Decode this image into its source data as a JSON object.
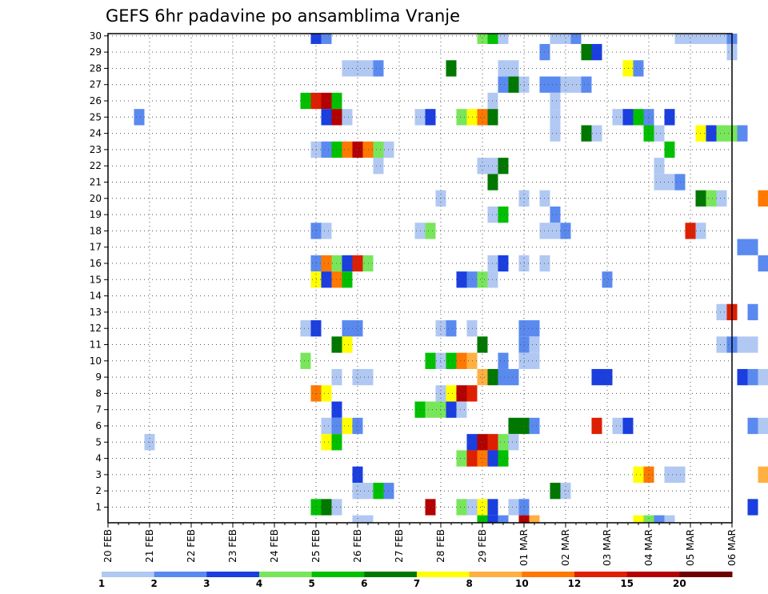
{
  "chart_data": {
    "type": "heatmap",
    "title": "GEFS 6hr padavine po ansamblima Vranje",
    "y_tick_labels": [
      "1",
      "2",
      "3",
      "4",
      "5",
      "6",
      "7",
      "8",
      "9",
      "10",
      "11",
      "12",
      "13",
      "14",
      "15",
      "16",
      "17",
      "18",
      "19",
      "20",
      "21",
      "22",
      "23",
      "24",
      "25",
      "26",
      "27",
      "28",
      "29",
      "30"
    ],
    "x_tick_labels": [
      "20 FEB",
      "21 FEB",
      "22 FEB",
      "23 FEB",
      "24 FEB",
      "25 FEB",
      "26 FEB",
      "27 FEB",
      "28 FEB",
      "29 FEB",
      "01 MAR",
      "02 MAR",
      "03 MAR",
      "04 MAR",
      "05 MAR",
      "06 MAR"
    ],
    "grid": true,
    "colorbar": {
      "colors": [
        "#b0c8f2",
        "#5a8af0",
        "#1a3ee0",
        "#78e65a",
        "#00c000",
        "#007800",
        "#ffff00",
        "#ffb040",
        "#ff7800",
        "#e01e00",
        "#b40000",
        "#6e0000"
      ],
      "tick_labels": [
        "1",
        "2",
        "3",
        "4",
        "5",
        "6",
        "7",
        "8",
        "10",
        "12",
        "15",
        "20"
      ]
    },
    "cells": [
      [
        30,
        25.0,
        3
      ],
      [
        30,
        25.25,
        2
      ],
      [
        30,
        29.0,
        4
      ],
      [
        30,
        29.25,
        5
      ],
      [
        30,
        29.5,
        1
      ],
      [
        30,
        30.75,
        1
      ],
      [
        30,
        31.0,
        1
      ],
      [
        30,
        31.25,
        2
      ],
      [
        30,
        33.75,
        1
      ],
      [
        30,
        34.0,
        1
      ],
      [
        30,
        34.25,
        1
      ],
      [
        30,
        34.5,
        1
      ],
      [
        30,
        34.75,
        1
      ],
      [
        30,
        35.0,
        2
      ],
      [
        29,
        30.5,
        2
      ],
      [
        29,
        31.5,
        6
      ],
      [
        29,
        31.75,
        3
      ],
      [
        29,
        35.0,
        1
      ],
      [
        28,
        25.75,
        1
      ],
      [
        28,
        26.0,
        1
      ],
      [
        28,
        26.25,
        1
      ],
      [
        28,
        26.5,
        2
      ],
      [
        28,
        28.25,
        6
      ],
      [
        28,
        29.5,
        1
      ],
      [
        28,
        29.75,
        1
      ],
      [
        28,
        32.5,
        7
      ],
      [
        28,
        32.75,
        2
      ],
      [
        27,
        29.5,
        2
      ],
      [
        27,
        29.75,
        6
      ],
      [
        27,
        30.0,
        1
      ],
      [
        27,
        30.5,
        2
      ],
      [
        27,
        30.75,
        2
      ],
      [
        27,
        31.0,
        1
      ],
      [
        27,
        31.25,
        1
      ],
      [
        27,
        31.5,
        2
      ],
      [
        26,
        24.75,
        5
      ],
      [
        26,
        25.0,
        10
      ],
      [
        26,
        25.25,
        11
      ],
      [
        26,
        25.5,
        5
      ],
      [
        26,
        29.25,
        1
      ],
      [
        26,
        30.75,
        1
      ],
      [
        25,
        20.75,
        2
      ],
      [
        25,
        25.25,
        3
      ],
      [
        25,
        25.5,
        11
      ],
      [
        25,
        25.75,
        1
      ],
      [
        25,
        27.5,
        1
      ],
      [
        25,
        27.75,
        3
      ],
      [
        25,
        28.5,
        4
      ],
      [
        25,
        28.75,
        7
      ],
      [
        25,
        29.0,
        9
      ],
      [
        25,
        29.25,
        6
      ],
      [
        25,
        30.75,
        1
      ],
      [
        25,
        32.25,
        1
      ],
      [
        25,
        32.5,
        3
      ],
      [
        25,
        32.75,
        5
      ],
      [
        25,
        33.0,
        2
      ],
      [
        25,
        33.5,
        3
      ],
      [
        24,
        30.75,
        1
      ],
      [
        24,
        31.5,
        6
      ],
      [
        24,
        31.75,
        1
      ],
      [
        24,
        33.0,
        5
      ],
      [
        24,
        33.25,
        1
      ],
      [
        24,
        34.25,
        7
      ],
      [
        24,
        34.5,
        3
      ],
      [
        24,
        34.75,
        4
      ],
      [
        24,
        35.0,
        4
      ],
      [
        24,
        35.25,
        2
      ],
      [
        23,
        25.0,
        1
      ],
      [
        23,
        25.25,
        2
      ],
      [
        23,
        25.5,
        5
      ],
      [
        23,
        25.75,
        9
      ],
      [
        23,
        26.0,
        11
      ],
      [
        23,
        26.25,
        9
      ],
      [
        23,
        26.5,
        4
      ],
      [
        23,
        26.75,
        1
      ],
      [
        23,
        33.5,
        5
      ],
      [
        22,
        26.5,
        1
      ],
      [
        22,
        29.0,
        1
      ],
      [
        22,
        29.25,
        1
      ],
      [
        22,
        29.5,
        6
      ],
      [
        22,
        33.25,
        1
      ],
      [
        21,
        29.25,
        6
      ],
      [
        21,
        33.25,
        1
      ],
      [
        21,
        33.5,
        1
      ],
      [
        21,
        33.75,
        2
      ],
      [
        20,
        28.0,
        1
      ],
      [
        20,
        30.0,
        1
      ],
      [
        20,
        30.5,
        1
      ],
      [
        20,
        34.25,
        6
      ],
      [
        20,
        34.5,
        4
      ],
      [
        20,
        34.75,
        1
      ],
      [
        20,
        35.75,
        9
      ],
      [
        19,
        29.25,
        1
      ],
      [
        19,
        29.5,
        5
      ],
      [
        19,
        30.75,
        2
      ],
      [
        18,
        25.0,
        2
      ],
      [
        18,
        25.25,
        1
      ],
      [
        18,
        27.5,
        1
      ],
      [
        18,
        27.75,
        4
      ],
      [
        18,
        30.5,
        1
      ],
      [
        18,
        30.75,
        1
      ],
      [
        18,
        31.0,
        2
      ],
      [
        18,
        34.0,
        10
      ],
      [
        18,
        34.25,
        1
      ],
      [
        17,
        35.25,
        2
      ],
      [
        17,
        35.5,
        2
      ],
      [
        16,
        25.0,
        2
      ],
      [
        16,
        25.25,
        9
      ],
      [
        16,
        25.5,
        4
      ],
      [
        16,
        25.75,
        3
      ],
      [
        16,
        26.0,
        10
      ],
      [
        16,
        26.25,
        4
      ],
      [
        16,
        29.25,
        1
      ],
      [
        16,
        29.5,
        3
      ],
      [
        16,
        30.0,
        1
      ],
      [
        16,
        30.5,
        1
      ],
      [
        16,
        35.75,
        2
      ],
      [
        15,
        25.0,
        7
      ],
      [
        15,
        25.25,
        3
      ],
      [
        15,
        25.5,
        9
      ],
      [
        15,
        25.75,
        5
      ],
      [
        15,
        28.5,
        3
      ],
      [
        15,
        28.75,
        2
      ],
      [
        15,
        29.0,
        4
      ],
      [
        15,
        29.25,
        1
      ],
      [
        15,
        32.0,
        2
      ],
      [
        13,
        34.75,
        1
      ],
      [
        13,
        35.0,
        10
      ],
      [
        13,
        35.5,
        2
      ],
      [
        12,
        24.75,
        1
      ],
      [
        12,
        25.0,
        3
      ],
      [
        12,
        25.75,
        2
      ],
      [
        12,
        26.0,
        2
      ],
      [
        12,
        28.0,
        1
      ],
      [
        12,
        28.25,
        2
      ],
      [
        12,
        28.75,
        1
      ],
      [
        12,
        30.0,
        2
      ],
      [
        12,
        30.25,
        2
      ],
      [
        11,
        25.5,
        6
      ],
      [
        11,
        25.75,
        7
      ],
      [
        11,
        29.0,
        6
      ],
      [
        11,
        30.0,
        2
      ],
      [
        11,
        30.25,
        1
      ],
      [
        11,
        34.75,
        1
      ],
      [
        11,
        35.0,
        2
      ],
      [
        11,
        35.25,
        1
      ],
      [
        11,
        35.5,
        1
      ],
      [
        10,
        24.75,
        4
      ],
      [
        10,
        27.75,
        5
      ],
      [
        10,
        28.0,
        1
      ],
      [
        10,
        28.25,
        5
      ],
      [
        10,
        28.5,
        9
      ],
      [
        10,
        28.75,
        8
      ],
      [
        10,
        29.5,
        2
      ],
      [
        10,
        30.0,
        1
      ],
      [
        10,
        30.25,
        1
      ],
      [
        9,
        25.5,
        1
      ],
      [
        9,
        26.0,
        1
      ],
      [
        9,
        26.25,
        1
      ],
      [
        9,
        29.0,
        8
      ],
      [
        9,
        29.25,
        6
      ],
      [
        9,
        29.5,
        2
      ],
      [
        9,
        29.75,
        2
      ],
      [
        9,
        31.75,
        3
      ],
      [
        9,
        32.0,
        3
      ],
      [
        9,
        35.25,
        3
      ],
      [
        9,
        35.5,
        2
      ],
      [
        9,
        35.75,
        1
      ],
      [
        8,
        25.0,
        9
      ],
      [
        8,
        25.25,
        7
      ],
      [
        8,
        28.0,
        1
      ],
      [
        8,
        28.25,
        7
      ],
      [
        8,
        28.5,
        11
      ],
      [
        8,
        28.75,
        10
      ],
      [
        7,
        25.5,
        3
      ],
      [
        7,
        27.5,
        5
      ],
      [
        7,
        27.75,
        4
      ],
      [
        7,
        28.0,
        4
      ],
      [
        7,
        28.25,
        3
      ],
      [
        7,
        28.5,
        1
      ],
      [
        6,
        25.25,
        1
      ],
      [
        6,
        25.5,
        2
      ],
      [
        6,
        25.75,
        7
      ],
      [
        6,
        26.0,
        2
      ],
      [
        6,
        29.75,
        6
      ],
      [
        6,
        30.0,
        6
      ],
      [
        6,
        30.25,
        2
      ],
      [
        6,
        31.75,
        10
      ],
      [
        6,
        32.25,
        1
      ],
      [
        6,
        32.5,
        3
      ],
      [
        6,
        35.5,
        2
      ],
      [
        6,
        35.75,
        1
      ],
      [
        5,
        21.0,
        1
      ],
      [
        5,
        25.25,
        7
      ],
      [
        5,
        25.5,
        5
      ],
      [
        5,
        28.75,
        3
      ],
      [
        5,
        29.0,
        11
      ],
      [
        5,
        29.25,
        10
      ],
      [
        5,
        29.5,
        4
      ],
      [
        5,
        29.75,
        1
      ],
      [
        4,
        28.5,
        4
      ],
      [
        4,
        28.75,
        10
      ],
      [
        4,
        29.0,
        9
      ],
      [
        4,
        29.25,
        3
      ],
      [
        4,
        29.5,
        5
      ],
      [
        3,
        26.0,
        3
      ],
      [
        3,
        32.75,
        7
      ],
      [
        3,
        33.0,
        9
      ],
      [
        3,
        33.5,
        1
      ],
      [
        3,
        33.75,
        1
      ],
      [
        3,
        35.75,
        8
      ],
      [
        2,
        26.0,
        1
      ],
      [
        2,
        26.25,
        1
      ],
      [
        2,
        26.5,
        5
      ],
      [
        2,
        26.75,
        2
      ],
      [
        2,
        30.75,
        6
      ],
      [
        2,
        31.0,
        1
      ],
      [
        1,
        25.0,
        5
      ],
      [
        1,
        25.25,
        6
      ],
      [
        1,
        25.5,
        1
      ],
      [
        1,
        27.75,
        11
      ],
      [
        1,
        28.5,
        4
      ],
      [
        1,
        28.75,
        1
      ],
      [
        1,
        29.0,
        7
      ],
      [
        1,
        29.25,
        3
      ],
      [
        1,
        29.75,
        1
      ],
      [
        1,
        30.0,
        2
      ],
      [
        1,
        35.5,
        3
      ],
      [
        0,
        26.0,
        1
      ],
      [
        0,
        26.25,
        1
      ],
      [
        0,
        29.0,
        5
      ],
      [
        0,
        29.25,
        3
      ],
      [
        0,
        29.5,
        2
      ],
      [
        0,
        30.0,
        11
      ],
      [
        0,
        30.25,
        8
      ],
      [
        0,
        32.75,
        7
      ],
      [
        0,
        33.0,
        4
      ],
      [
        0,
        33.25,
        2
      ],
      [
        0,
        33.5,
        1
      ]
    ]
  }
}
